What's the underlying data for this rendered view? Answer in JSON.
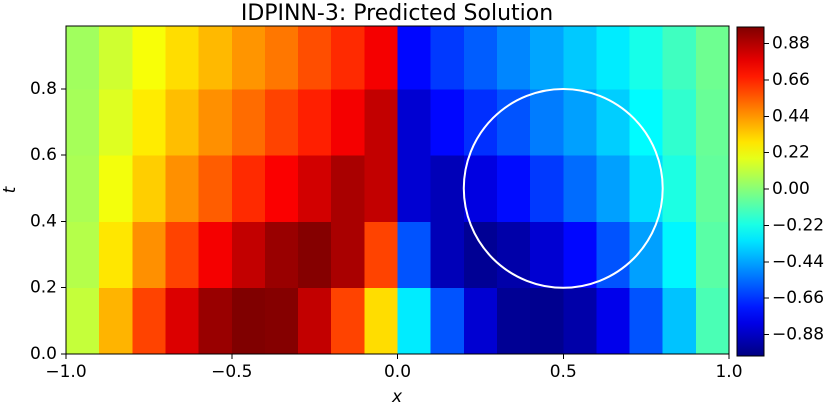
{
  "chart_data": {
    "type": "heatmap",
    "title": "IDPINN-3: Predicted Solution",
    "x_label": "x",
    "y_label": "t",
    "xbins": [
      -1.0,
      -0.9,
      -0.8,
      -0.7,
      -0.6,
      -0.5,
      -0.4,
      -0.3,
      -0.2,
      -0.1,
      0.0,
      0.1,
      0.2,
      0.3,
      0.4,
      0.5,
      0.6,
      0.7,
      0.8,
      0.9,
      1.0
    ],
    "ybins": [
      0,
      0.2,
      0.4,
      0.6,
      0.8,
      0.99
    ],
    "z": [
      [
        0.12,
        0.38,
        0.6,
        0.8,
        0.93,
        0.98,
        0.97,
        0.85,
        0.6,
        0.3,
        -0.3,
        -0.6,
        -0.85,
        -0.97,
        -0.98,
        -0.93,
        -0.8,
        -0.6,
        -0.38,
        -0.12
      ],
      [
        0.09,
        0.28,
        0.45,
        0.6,
        0.75,
        0.85,
        0.93,
        0.97,
        0.9,
        0.6,
        -0.6,
        -0.9,
        -0.97,
        -0.93,
        -0.85,
        -0.75,
        -0.6,
        -0.45,
        -0.28,
        -0.09
      ],
      [
        0.07,
        0.21,
        0.33,
        0.45,
        0.55,
        0.65,
        0.74,
        0.82,
        0.9,
        0.85,
        -0.85,
        -0.9,
        -0.82,
        -0.74,
        -0.65,
        -0.55,
        -0.45,
        -0.33,
        -0.21,
        -0.07
      ],
      [
        0.06,
        0.17,
        0.27,
        0.36,
        0.45,
        0.52,
        0.6,
        0.67,
        0.75,
        0.85,
        -0.85,
        -0.75,
        -0.67,
        -0.6,
        -0.52,
        -0.45,
        -0.36,
        -0.27,
        -0.17,
        -0.06
      ],
      [
        0.05,
        0.14,
        0.22,
        0.3,
        0.37,
        0.44,
        0.5,
        0.58,
        0.65,
        0.75,
        -0.75,
        -0.65,
        -0.58,
        -0.5,
        -0.44,
        -0.37,
        -0.3,
        -0.22,
        -0.14,
        -0.05
      ]
    ],
    "xlim": [
      -1.0,
      1.0
    ],
    "ylim": [
      0,
      0.99
    ],
    "zlim": [
      -1.01,
      0.98
    ],
    "colormap": "jet",
    "xticks": [
      {
        "value": -1.0,
        "label": "−1.0"
      },
      {
        "value": -0.5,
        "label": "−0.5"
      },
      {
        "value": 0,
        "label": "0.0"
      },
      {
        "value": 0.5,
        "label": "0.5"
      },
      {
        "value": 1.0,
        "label": "1.0"
      }
    ],
    "yticks": [
      {
        "value": 0,
        "label": "0.0"
      },
      0.2,
      0.4,
      0.6,
      0.8
    ],
    "zticks": [
      0.88,
      0.66,
      0.44,
      0.22,
      {
        "value": 0,
        "label": "0.00"
      },
      {
        "value": -0.22,
        "label": "−0.22"
      },
      {
        "value": -0.44,
        "label": "−0.44"
      },
      {
        "value": -0.66,
        "label": "−0.66"
      },
      {
        "value": -0.88,
        "label": "−0.88"
      }
    ],
    "annotation": {
      "shape": "circle",
      "center": [
        0.5,
        0.5
      ],
      "radius": 0.3,
      "color": "#ffffff"
    }
  }
}
